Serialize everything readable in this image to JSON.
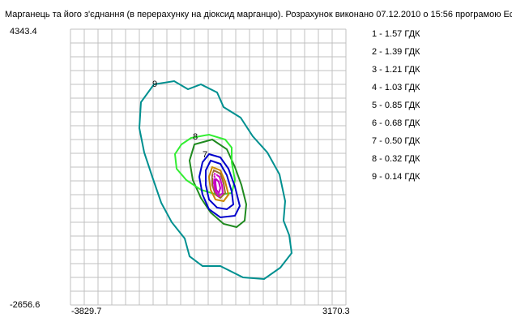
{
  "title": "Марганець та його з'єднання (в перерахунку на діоксид марганцю). Розрахунок виконано 07.12.2010 о 15:56 програмою Ес",
  "axes": {
    "y_top": "4343.4",
    "y_bottom": "-2656.6",
    "x_left": "-3829.7",
    "x_right": "3170.3"
  },
  "legend": [
    {
      "text": "1 - 1.57 ГДК",
      "color": "#ff00ff"
    },
    {
      "text": "2 - 1.39 ГДК",
      "color": "#c000c0"
    },
    {
      "text": "3 - 1.21 ГДК",
      "color": "#cc3399"
    },
    {
      "text": "4 - 1.03 ГДК",
      "color": "#996633"
    },
    {
      "text": "5 - 0.85 ГДК",
      "color": "#cc8800"
    },
    {
      "text": "6 - 0.68 ГДК",
      "color": "#0000cc"
    },
    {
      "text": "7 - 0.50 ГДК",
      "color": "#1a1aa0"
    },
    {
      "text": "8 - 0.32 ГДК",
      "color": "#33dd33"
    },
    {
      "text": "9 - 0.14 ГДК",
      "color": "#009090"
    }
  ],
  "contour_labels": [
    "9",
    "8",
    "7",
    "3"
  ],
  "colors": {
    "grid": "#c0c0c0",
    "contour_9": "#009090",
    "contour_8_outer": "#1f8a1f",
    "contour_8_light": "#33ee33",
    "contour_7": "#0000cc",
    "contour_core": "#cc00cc"
  }
}
